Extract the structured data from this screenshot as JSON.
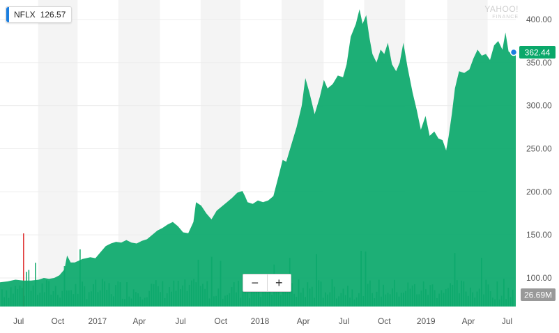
{
  "ticker": {
    "symbol": "NFLX",
    "value": "126.57"
  },
  "watermark": {
    "brand": "YAHOO!",
    "sub": "FINANCE"
  },
  "zoom": {
    "out_label": "−",
    "in_label": "+"
  },
  "colors": {
    "area": "#0aa86a",
    "volume": "#10a86a",
    "volume_highlight": "#e03a3a",
    "last_price_badge": "#0aa86a",
    "volume_badge": "#999999",
    "band": "#f4f4f4",
    "current_dot": "#1b7ee0"
  },
  "chart_data": {
    "type": "area",
    "x_label": "",
    "y_label": "",
    "ylim": [
      90,
      420
    ],
    "y_axis_position": "right",
    "y_ticks": [
      "400.00",
      "350.00",
      "300.00",
      "250.00",
      "200.00",
      "150.00",
      "100.00"
    ],
    "x_ticks": [
      "Jul",
      "Oct",
      "2017",
      "Apr",
      "Jul",
      "Oct",
      "2018",
      "Apr",
      "Jul",
      "Oct",
      "2019",
      "Apr",
      "Jul"
    ],
    "x_range": [
      "2016-06",
      "2019-07"
    ],
    "last_price": "362.44",
    "last_volume": "26.69M",
    "series": [
      {
        "values": [
          [
            0.0,
            95
          ],
          [
            0.015,
            96
          ],
          [
            0.03,
            98
          ],
          [
            0.045,
            97
          ],
          [
            0.06,
            97
          ],
          [
            0.075,
            98
          ],
          [
            0.085,
            100
          ],
          [
            0.095,
            99
          ],
          [
            0.105,
            100
          ],
          [
            0.115,
            103
          ],
          [
            0.125,
            110
          ],
          [
            0.13,
            126
          ],
          [
            0.137,
            118
          ],
          [
            0.145,
            118
          ],
          [
            0.16,
            122
          ],
          [
            0.175,
            124
          ],
          [
            0.185,
            123
          ],
          [
            0.195,
            130
          ],
          [
            0.205,
            137
          ],
          [
            0.215,
            140
          ],
          [
            0.225,
            142
          ],
          [
            0.235,
            141
          ],
          [
            0.245,
            144
          ],
          [
            0.255,
            141
          ],
          [
            0.265,
            140
          ],
          [
            0.275,
            143
          ],
          [
            0.285,
            145
          ],
          [
            0.295,
            150
          ],
          [
            0.305,
            155
          ],
          [
            0.315,
            158
          ],
          [
            0.325,
            162
          ],
          [
            0.335,
            165
          ],
          [
            0.345,
            160
          ],
          [
            0.355,
            153
          ],
          [
            0.365,
            152
          ],
          [
            0.375,
            165
          ],
          [
            0.38,
            188
          ],
          [
            0.39,
            184
          ],
          [
            0.4,
            175
          ],
          [
            0.41,
            168
          ],
          [
            0.42,
            178
          ],
          [
            0.43,
            183
          ],
          [
            0.44,
            188
          ],
          [
            0.45,
            193
          ],
          [
            0.46,
            199
          ],
          [
            0.47,
            201
          ],
          [
            0.475,
            195
          ],
          [
            0.48,
            188
          ],
          [
            0.49,
            186
          ],
          [
            0.5,
            190
          ],
          [
            0.51,
            188
          ],
          [
            0.52,
            190
          ],
          [
            0.53,
            195
          ],
          [
            0.54,
            218
          ],
          [
            0.548,
            237
          ],
          [
            0.555,
            235
          ],
          [
            0.565,
            255
          ],
          [
            0.575,
            275
          ],
          [
            0.585,
            300
          ],
          [
            0.592,
            332
          ],
          [
            0.6,
            315
          ],
          [
            0.61,
            290
          ],
          [
            0.62,
            310
          ],
          [
            0.628,
            330
          ],
          [
            0.635,
            320
          ],
          [
            0.645,
            325
          ],
          [
            0.655,
            335
          ],
          [
            0.665,
            333
          ],
          [
            0.672,
            348
          ],
          [
            0.68,
            380
          ],
          [
            0.69,
            395
          ],
          [
            0.697,
            412
          ],
          [
            0.703,
            395
          ],
          [
            0.71,
            405
          ],
          [
            0.716,
            380
          ],
          [
            0.722,
            360
          ],
          [
            0.73,
            350
          ],
          [
            0.738,
            365
          ],
          [
            0.745,
            360
          ],
          [
            0.752,
            373
          ],
          [
            0.76,
            348
          ],
          [
            0.768,
            340
          ],
          [
            0.775,
            350
          ],
          [
            0.782,
            373
          ],
          [
            0.79,
            345
          ],
          [
            0.8,
            315
          ],
          [
            0.808,
            295
          ],
          [
            0.816,
            272
          ],
          [
            0.825,
            288
          ],
          [
            0.833,
            265
          ],
          [
            0.842,
            270
          ],
          [
            0.85,
            262
          ],
          [
            0.858,
            260
          ],
          [
            0.865,
            248
          ],
          [
            0.87,
            265
          ],
          [
            0.876,
            290
          ],
          [
            0.882,
            320
          ],
          [
            0.89,
            340
          ],
          [
            0.9,
            338
          ],
          [
            0.91,
            342
          ],
          [
            0.918,
            355
          ],
          [
            0.926,
            365
          ],
          [
            0.934,
            358
          ],
          [
            0.942,
            360
          ],
          [
            0.95,
            353
          ],
          [
            0.958,
            370
          ],
          [
            0.966,
            375
          ],
          [
            0.974,
            365
          ],
          [
            0.98,
            385
          ],
          [
            0.986,
            363
          ],
          [
            0.992,
            360
          ],
          [
            1.0,
            362
          ]
        ]
      }
    ]
  }
}
